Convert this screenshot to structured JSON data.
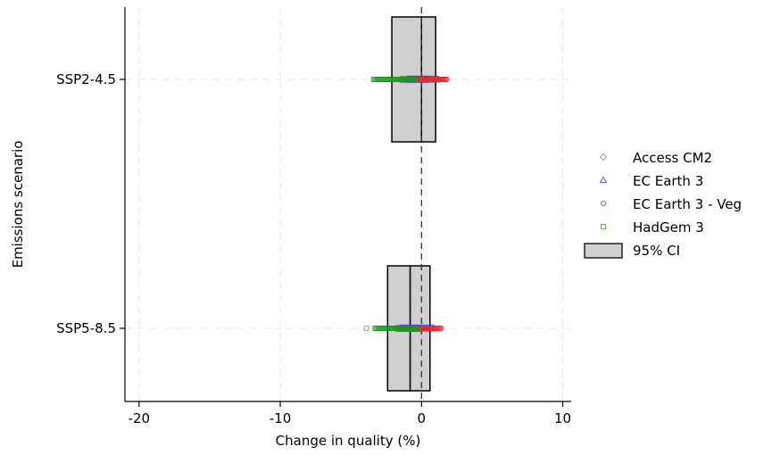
{
  "chart_data": {
    "type": "scatter",
    "xlabel": "Change in quality (%)",
    "ylabel": "Emissions scenario",
    "xlim": [
      -21,
      10.6
    ],
    "x_ticks": [
      -20,
      -10,
      0,
      10
    ],
    "x_tick_labels": [
      "-20",
      "-10",
      "0",
      "10"
    ],
    "categories": [
      "SSP2-4.5",
      "SSP5-8.5"
    ],
    "reference_line_x": 0,
    "grid": true,
    "legend_position": "right",
    "ci": [
      {
        "category": "SSP2-4.5",
        "lower": -2.1,
        "upper": 1.0,
        "median": 0.0
      },
      {
        "category": "SSP5-8.5",
        "lower": -2.4,
        "upper": 0.6,
        "median": -0.8
      }
    ],
    "series": [
      {
        "name": "Access CM2",
        "marker": "diamond",
        "color": "#7f7f7f",
        "ranges": [
          {
            "category": "SSP2-4.5",
            "min": -1.5,
            "max": 0.5
          },
          {
            "category": "SSP5-8.5",
            "min": -1.8,
            "max": 0.0
          }
        ]
      },
      {
        "name": "EC Earth 3",
        "marker": "triangle",
        "color": "#3030e0",
        "ranges": [
          {
            "category": "SSP2-4.5",
            "min": -1.0,
            "max": 1.2
          },
          {
            "category": "SSP5-8.5",
            "min": -1.5,
            "max": 0.9
          }
        ]
      },
      {
        "name": "EC Earth 3 - Veg",
        "marker": "circle",
        "color": "#e03030",
        "ranges": [
          {
            "category": "SSP2-4.5",
            "min": -0.5,
            "max": 1.8
          },
          {
            "category": "SSP5-8.5",
            "min": -1.0,
            "max": 1.4
          }
        ]
      },
      {
        "name": "HadGem 3",
        "marker": "square",
        "color": "#1a9a1a",
        "ranges": [
          {
            "category": "SSP2-4.5",
            "min": -3.4,
            "max": -0.5
          },
          {
            "category": "SSP5-8.5",
            "min": -3.3,
            "max": -0.3
          }
        ]
      }
    ],
    "outliers": [
      {
        "series": "HadGem 3",
        "category": "SSP5-8.5",
        "x": -3.9
      }
    ],
    "ci_legend_label": "95% CI"
  },
  "colors": {
    "box_fill": "#d0d0d0",
    "grid": "#e6e6e6"
  }
}
